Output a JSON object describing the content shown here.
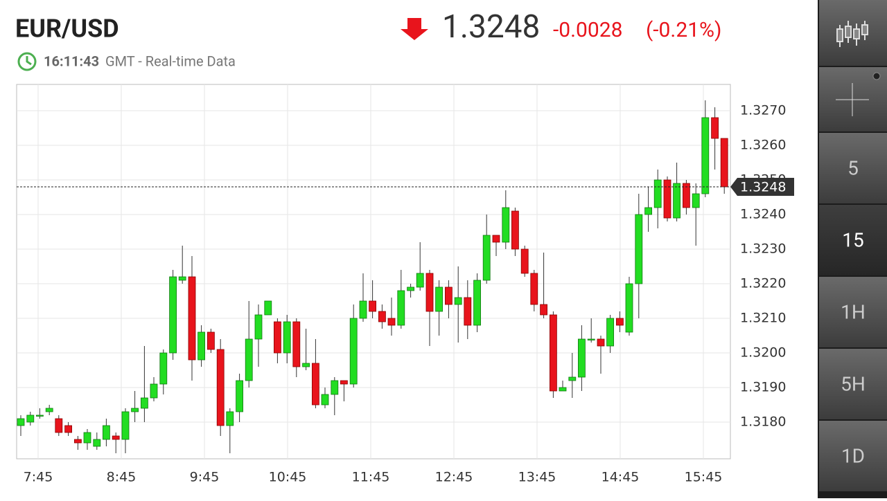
{
  "header": {
    "symbol": "EUR/USD",
    "time": "16:11:43",
    "time_note": "GMT - Real-time Data",
    "price": "1.3248",
    "change": "-0.0028",
    "change_pct": "(-0.21%)"
  },
  "sidebar": {
    "buttons": [
      "5",
      "15",
      "1H",
      "5H",
      "1D"
    ],
    "selected": "15"
  },
  "chart_data": {
    "type": "candlestick",
    "up_color": "#22dd22",
    "down_color": "#e8141c",
    "grid": true,
    "last_price": 1.3248,
    "xlim": [
      449.5,
      964.5
    ],
    "xticks": [
      {
        "value": 465,
        "label": "7:45"
      },
      {
        "value": 525,
        "label": "8:45"
      },
      {
        "value": 585,
        "label": "9:45"
      },
      {
        "value": 645,
        "label": "10:45"
      },
      {
        "value": 705,
        "label": "11:45"
      },
      {
        "value": 765,
        "label": "12:45"
      },
      {
        "value": 825,
        "label": "13:45"
      },
      {
        "value": 885,
        "label": "14:45"
      },
      {
        "value": 945,
        "label": "15:45"
      }
    ],
    "ylim": [
      1.31694,
      1.32776
    ],
    "yticks": [
      {
        "value": 1.318,
        "label": "1.3180"
      },
      {
        "value": 1.319,
        "label": "1.3190"
      },
      {
        "value": 1.32,
        "label": "1.3200"
      },
      {
        "value": 1.321,
        "label": "1.3210"
      },
      {
        "value": 1.322,
        "label": "1.3220"
      },
      {
        "value": 1.323,
        "label": "1.3230"
      },
      {
        "value": 1.324,
        "label": "1.3240"
      },
      {
        "value": 1.325,
        "label": "1.3250"
      },
      {
        "value": 1.326,
        "label": "1.3260"
      },
      {
        "value": 1.327,
        "label": "1.3270"
      }
    ],
    "x": [
      452.5,
      459.4,
      466.2,
      473.1,
      479.9,
      486.8,
      493.7,
      500.5,
      507.4,
      514.2,
      521.1,
      528.0,
      534.8,
      541.7,
      548.5,
      555.4,
      562.3,
      569.1,
      576.0,
      582.8,
      589.7,
      596.6,
      603.4,
      610.3,
      617.1,
      624.0,
      630.9,
      637.7,
      644.6,
      651.4,
      658.3,
      665.2,
      672.0,
      678.9,
      685.7,
      692.6,
      699.5,
      706.3,
      713.2,
      720.0,
      726.9,
      733.8,
      740.6,
      747.5,
      754.3,
      761.2,
      768.1,
      774.9,
      781.8,
      788.6,
      795.5,
      802.4,
      809.2,
      816.1,
      822.9,
      829.8,
      836.7,
      843.5,
      850.4,
      857.2,
      864.1,
      871.0,
      877.8,
      884.7,
      891.5,
      898.4,
      905.3,
      912.1,
      919.0,
      925.8,
      932.7,
      939.6,
      946.4,
      953.3,
      960.1
    ],
    "open": [
      1.3179,
      1.318,
      1.3182,
      1.3183,
      1.3181,
      1.3179,
      1.3175,
      1.3174,
      1.3173,
      1.3175,
      1.3176,
      1.3175,
      1.3183,
      1.3184,
      1.3187,
      1.3191,
      1.32,
      1.3221,
      1.3222,
      1.3198,
      1.3206,
      1.3201,
      1.3179,
      1.3183,
      1.3192,
      1.3204,
      1.3211,
      1.3209,
      1.32,
      1.3209,
      1.3196,
      1.3197,
      1.3185,
      1.3188,
      1.3192,
      1.3191,
      1.321,
      1.3215,
      1.3212,
      1.321,
      1.3208,
      1.3218,
      1.3219,
      1.3223,
      1.3212,
      1.3219,
      1.3214,
      1.3216,
      1.3208,
      1.3221,
      1.3234,
      1.3232,
      1.3241,
      1.323,
      1.3223,
      1.3214,
      1.3211,
      1.3189,
      1.3192,
      1.3193,
      1.3204,
      1.3204,
      1.3202,
      1.321,
      1.3206,
      1.322,
      1.324,
      1.3242,
      1.325,
      1.3239,
      1.3249,
      1.3242,
      1.3246,
      1.3268,
      1.3262
    ],
    "high": [
      1.3182,
      1.3183,
      1.3184,
      1.3185,
      1.3182,
      1.318,
      1.3176,
      1.3178,
      1.3177,
      1.3181,
      1.3177,
      1.3184,
      1.3189,
      1.3202,
      1.3193,
      1.3201,
      1.3224,
      1.3231,
      1.3228,
      1.3208,
      1.3207,
      1.3204,
      1.3184,
      1.3194,
      1.3215,
      1.3214,
      1.3215,
      1.321,
      1.3211,
      1.321,
      1.3207,
      1.3204,
      1.319,
      1.3193,
      1.3192,
      1.3214,
      1.3223,
      1.3221,
      1.3214,
      1.3216,
      1.3224,
      1.322,
      1.3232,
      1.3224,
      1.3221,
      1.3221,
      1.3225,
      1.3221,
      1.3223,
      1.324,
      1.3234,
      1.3247,
      1.3242,
      1.3231,
      1.3224,
      1.3229,
      1.3212,
      1.3192,
      1.32,
      1.3208,
      1.321,
      1.3205,
      1.3211,
      1.3212,
      1.3222,
      1.3246,
      1.3248,
      1.3253,
      1.3251,
      1.3255,
      1.325,
      1.3249,
      1.3273,
      1.3271,
      1.3262
    ],
    "low": [
      1.3176,
      1.3179,
      1.3181,
      1.3182,
      1.3176,
      1.3176,
      1.3172,
      1.3172,
      1.3172,
      1.3173,
      1.3171,
      1.3171,
      1.318,
      1.318,
      1.3186,
      1.3188,
      1.3198,
      1.322,
      1.3192,
      1.3196,
      1.32,
      1.3176,
      1.3171,
      1.318,
      1.319,
      1.3196,
      1.3211,
      1.3197,
      1.3197,
      1.3193,
      1.3195,
      1.3184,
      1.3184,
      1.3182,
      1.3186,
      1.319,
      1.3209,
      1.321,
      1.3207,
      1.3205,
      1.3207,
      1.3216,
      1.3218,
      1.3202,
      1.3205,
      1.321,
      1.3203,
      1.3204,
      1.3206,
      1.322,
      1.3228,
      1.323,
      1.3228,
      1.3222,
      1.3212,
      1.321,
      1.3187,
      1.3189,
      1.3187,
      1.3189,
      1.3203,
      1.3194,
      1.32,
      1.3206,
      1.3205,
      1.321,
      1.3235,
      1.3236,
      1.3238,
      1.3238,
      1.324,
      1.3231,
      1.3245,
      1.3253,
      1.3246
    ],
    "close": [
      1.3181,
      1.3182,
      1.3182,
      1.3184,
      1.3177,
      1.3177,
      1.3174,
      1.3177,
      1.3175,
      1.3179,
      1.3175,
      1.3183,
      1.3184,
      1.3187,
      1.3191,
      1.32,
      1.3222,
      1.3222,
      1.3198,
      1.3206,
      1.3201,
      1.3179,
      1.3183,
      1.3192,
      1.3204,
      1.3211,
      1.3215,
      1.32,
      1.3209,
      1.3196,
      1.3197,
      1.3185,
      1.3188,
      1.3192,
      1.3191,
      1.321,
      1.3215,
      1.3212,
      1.3209,
      1.3208,
      1.3218,
      1.3219,
      1.3223,
      1.3212,
      1.3219,
      1.3214,
      1.3216,
      1.3208,
      1.3221,
      1.3234,
      1.3232,
      1.3242,
      1.323,
      1.3223,
      1.3214,
      1.3211,
      1.3189,
      1.319,
      1.3193,
      1.3204,
      1.3204,
      1.3202,
      1.321,
      1.3208,
      1.322,
      1.324,
      1.3242,
      1.325,
      1.3239,
      1.3249,
      1.3242,
      1.3246,
      1.3268,
      1.3262,
      1.3248
    ]
  }
}
